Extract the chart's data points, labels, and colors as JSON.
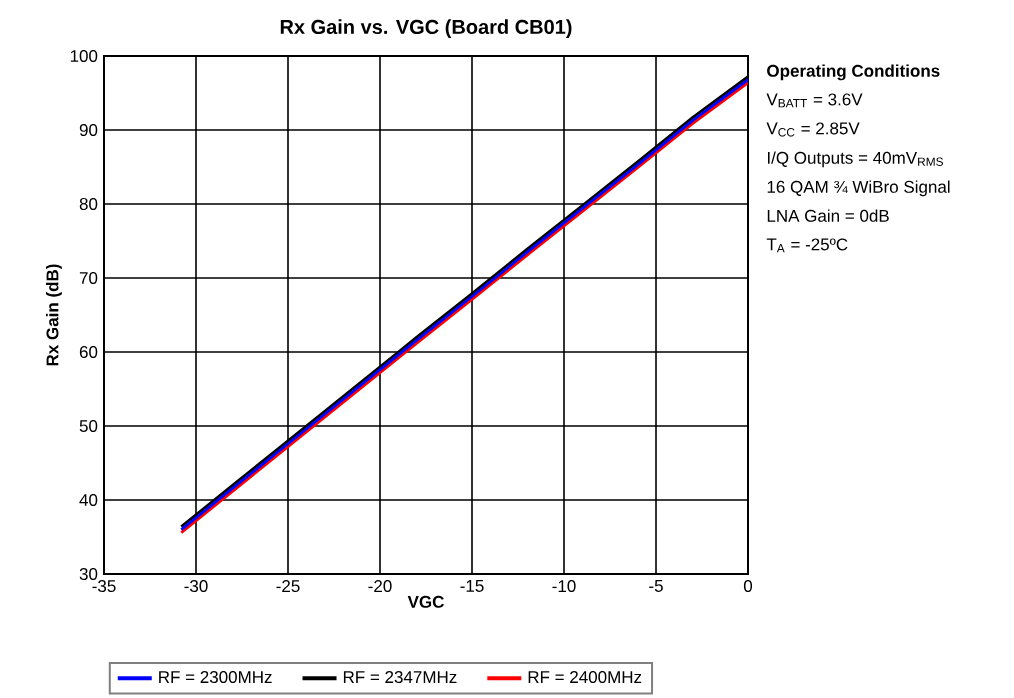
{
  "chart_data": {
    "type": "line",
    "title": "Rx Gain vs. VGC (Board CB01)",
    "xlabel": "VGC",
    "ylabel": "Rx Gain (dB)",
    "x": [
      -30.8,
      -28,
      -25,
      -22,
      -19,
      -18,
      -15,
      -12,
      -9,
      -6,
      -3,
      0
    ],
    "series": [
      {
        "name": "RF = 2300MHz",
        "color": "#0000ff",
        "values": [
          36.0,
          41.6,
          47.6,
          53.6,
          59.6,
          61.6,
          67.5,
          73.5,
          79.4,
          85.3,
          91.3,
          96.8
        ]
      },
      {
        "name": "RF = 2347MHz",
        "color": "#000000",
        "values": [
          36.4,
          42.0,
          48.0,
          54.0,
          60.0,
          62.0,
          67.9,
          73.9,
          79.8,
          85.7,
          91.7,
          97.2
        ]
      },
      {
        "name": "RF = 2400MHz",
        "color": "#ff0000",
        "values": [
          35.6,
          41.2,
          47.2,
          53.2,
          59.2,
          61.2,
          67.1,
          73.1,
          79.0,
          84.9,
          90.9,
          96.4
        ]
      }
    ],
    "xlim": [
      -35,
      0
    ],
    "ylim": [
      30,
      100
    ],
    "xticks": [
      -35,
      -30,
      -25,
      -20,
      -15,
      -10,
      -5,
      0
    ],
    "yticks": [
      30,
      40,
      50,
      60,
      70,
      80,
      90,
      100
    ],
    "grid": true,
    "legend": "bottom",
    "line_style": "solid",
    "annotations": [
      "**Operating Conditions**",
      "V$_{BATT}$ = 3.6V",
      "V$_{CC}$ = 2.85V",
      "I/Q Outputs = 40mV$_{RMS}$",
      "16 QAM ¾ WiBro Signal",
      "LNA Gain = 0dB",
      "T$_{A}$ = -25ºC"
    ]
  }
}
